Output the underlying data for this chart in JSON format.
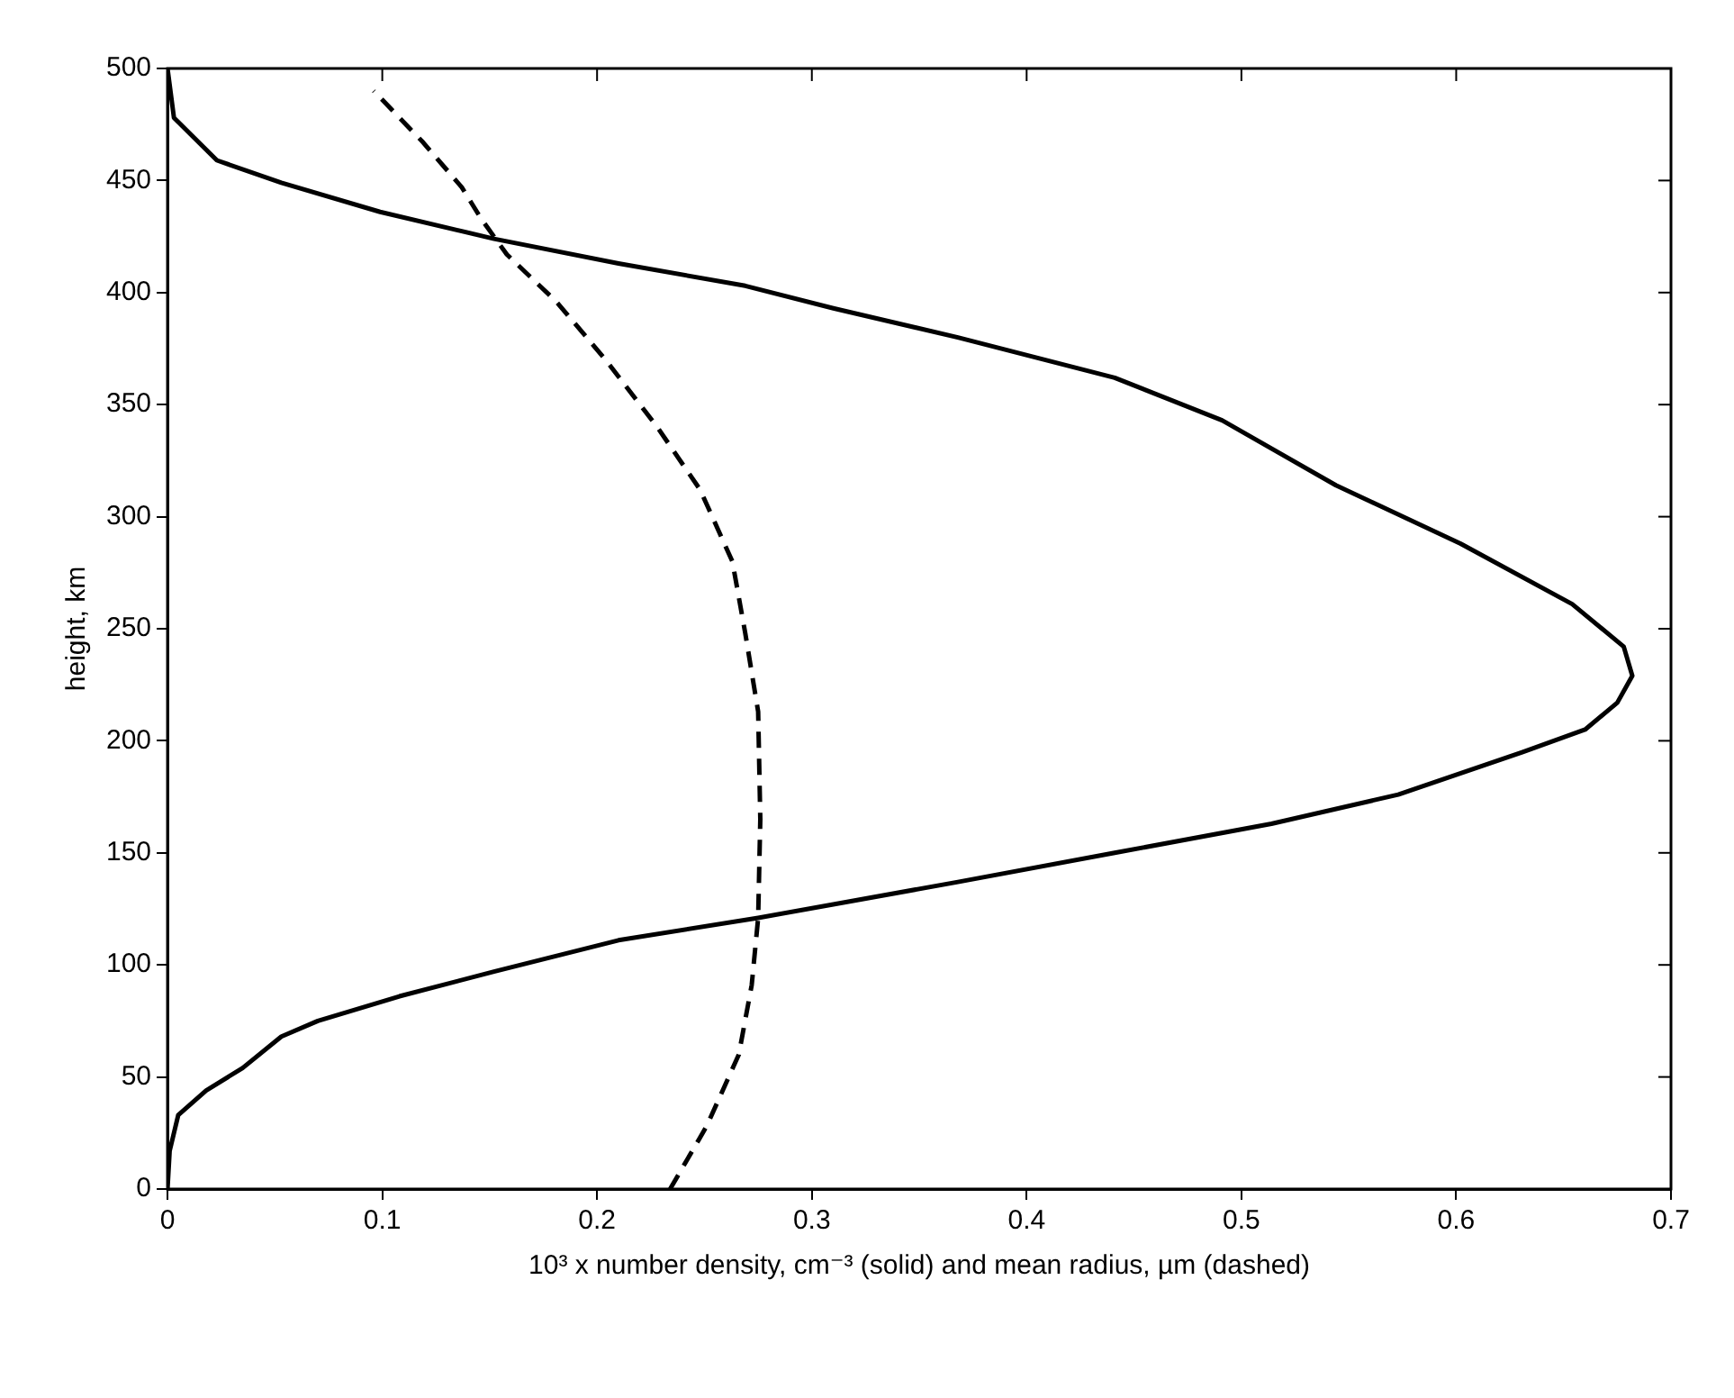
{
  "chart_data": {
    "type": "line",
    "xlabel": "10³ x number density, cm⁻³ (solid) and mean radius, µm (dashed)",
    "ylabel": "height, km",
    "xlim": [
      0,
      0.7
    ],
    "ylim": [
      0,
      500
    ],
    "xticks": [
      0,
      0.1,
      0.2,
      0.3,
      0.4,
      0.5,
      0.6,
      0.7
    ],
    "yticks": [
      0,
      50,
      100,
      150,
      200,
      250,
      300,
      350,
      400,
      450,
      500
    ],
    "grid": false,
    "legend": false,
    "marker": "none",
    "series": [
      {
        "color": "#000000",
        "line_style": "solid",
        "x": [
          0,
          0.001,
          0.005,
          0.018,
          0.035,
          0.053,
          0.07,
          0.108,
          0.152,
          0.21,
          0.275,
          0.31,
          0.368,
          0.441,
          0.514,
          0.573,
          0.631,
          0.66,
          0.675,
          0.682,
          0.678,
          0.654,
          0.602,
          0.544,
          0.491,
          0.441,
          0.368,
          0.31,
          0.269,
          0.21,
          0.152,
          0.099,
          0.053,
          0.023,
          0.003,
          0
        ],
        "values": [
          0,
          17,
          33,
          44,
          54,
          68,
          75,
          86,
          97,
          111,
          121,
          127,
          137,
          150,
          163,
          176,
          195,
          205,
          217,
          229,
          242,
          261,
          288,
          314,
          343,
          362,
          380,
          393,
          403,
          413,
          424,
          436,
          449,
          459,
          478,
          500
        ]
      },
      {
        "color": "#000000",
        "line_style": "dashed",
        "x": [
          0.234,
          0.251,
          0.266,
          0.272,
          0.275,
          0.276,
          0.275,
          0.269,
          0.263,
          0.248,
          0.228,
          0.204,
          0.181,
          0.158,
          0.146,
          0.137,
          0.119,
          0.096
        ],
        "values": [
          0,
          28,
          60,
          91,
          121,
          165,
          213,
          248,
          280,
          312,
          340,
          370,
          396,
          417,
          433,
          447,
          467,
          490
        ]
      }
    ]
  }
}
